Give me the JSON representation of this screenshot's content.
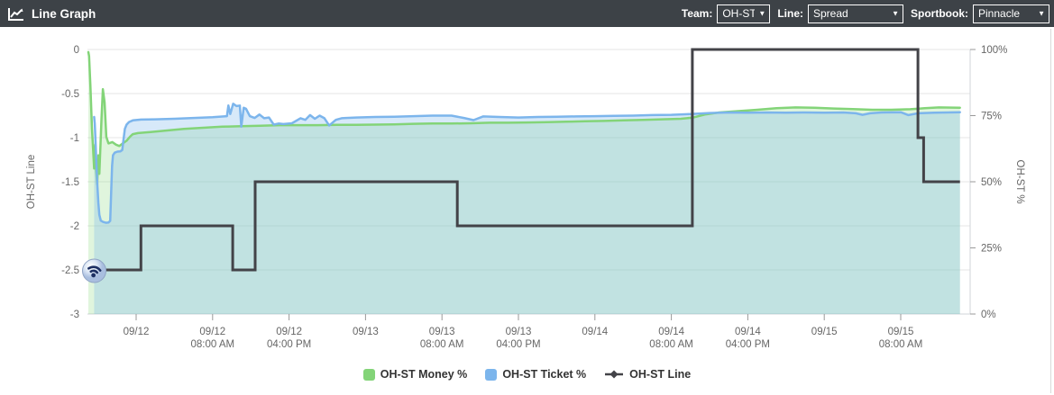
{
  "titlebar": {
    "title": "Line Graph",
    "controls": [
      {
        "label": "Team:",
        "value": "OH-ST"
      },
      {
        "label": "Line:",
        "value": "Spread"
      },
      {
        "label": "Sportbook:",
        "value": "Pinnacle"
      }
    ]
  },
  "colors": {
    "header_bg": "#3d4247",
    "money_green": "#83d478",
    "money_green_fill": "rgba(134,217,123,0.26)",
    "ticket_blue": "#7cb5ec",
    "ticket_blue_fill": "rgba(124,181,236,0.30)",
    "line_dark": "#434348",
    "grid": "#e6e6e6",
    "axis_line": "#d0d4d9",
    "tick": "#999999",
    "axis_text": "#666666",
    "legend_text": "#333333"
  },
  "watermark": {
    "icon": "rss-icon"
  },
  "chart_data": {
    "type": "line",
    "title": "",
    "x_unit": "hours from 09/12 12:00 AM",
    "x_tick_hours": [
      0,
      8,
      16,
      24,
      32,
      40,
      48,
      56,
      64,
      72,
      80
    ],
    "x_tick_labels": [
      [
        "09/12",
        ""
      ],
      [
        "09/12",
        "08:00 AM"
      ],
      [
        "09/12",
        "04:00 PM"
      ],
      [
        "09/13",
        ""
      ],
      [
        "09/13",
        "08:00 AM"
      ],
      [
        "09/13",
        "04:00 PM"
      ],
      [
        "09/14",
        ""
      ],
      [
        "09/14",
        "08:00 AM"
      ],
      [
        "09/14",
        "04:00 PM"
      ],
      [
        "09/15",
        ""
      ],
      [
        "09/15",
        "08:00 AM"
      ]
    ],
    "left_axis": {
      "title": "OH-ST Line",
      "min": -3,
      "max": 0,
      "tick_values": [
        0,
        -0.5,
        -1,
        -1.5,
        -2,
        -2.5,
        -3
      ],
      "tick_labels": [
        "0",
        "-0.5",
        "-1",
        "-1.5",
        "-2",
        "-2.5",
        "-3"
      ]
    },
    "right_axis": {
      "title": "OH-ST %",
      "min": 0,
      "max": 100,
      "tick_values": [
        100,
        75,
        50,
        25,
        0
      ],
      "tick_labels": [
        "100%",
        "75%",
        "50%",
        "25%",
        "0%"
      ]
    },
    "series": [
      {
        "name": "OH-ST Money %",
        "type": "area",
        "axis": "right",
        "points": [
          [
            -5.0,
            99
          ],
          [
            -4.92,
            97.5
          ],
          [
            -4.78,
            86
          ],
          [
            -4.62,
            70
          ],
          [
            -4.5,
            62
          ],
          [
            -4.4,
            55
          ],
          [
            -4.28,
            64
          ],
          [
            -4.18,
            54
          ],
          [
            -4.08,
            49
          ],
          [
            -3.95,
            60
          ],
          [
            -3.85,
            53
          ],
          [
            -3.62,
            74
          ],
          [
            -3.48,
            85
          ],
          [
            -3.3,
            80
          ],
          [
            -3.12,
            67
          ],
          [
            -2.9,
            64.5
          ],
          [
            -2.5,
            65
          ],
          [
            -2.1,
            64
          ],
          [
            -1.75,
            63.5
          ],
          [
            -1.4,
            64.5
          ],
          [
            -1.0,
            65.5
          ],
          [
            -0.65,
            67
          ],
          [
            -0.35,
            68
          ],
          [
            0.2,
            68.4
          ],
          [
            1.5,
            68.8
          ],
          [
            3,
            69.3
          ],
          [
            5,
            70
          ],
          [
            7,
            70.4
          ],
          [
            9,
            70.8
          ],
          [
            11,
            71
          ],
          [
            13,
            71.2
          ],
          [
            15,
            71.4
          ],
          [
            17,
            71.4
          ],
          [
            19,
            71.4
          ],
          [
            21,
            71.5
          ],
          [
            23,
            71.5
          ],
          [
            25,
            71.6
          ],
          [
            27,
            71.7
          ],
          [
            29,
            71.9
          ],
          [
            31,
            72
          ],
          [
            33,
            72
          ],
          [
            35,
            72.1
          ],
          [
            37,
            72.3
          ],
          [
            39,
            72.3
          ],
          [
            41,
            72.4
          ],
          [
            43,
            72.5
          ],
          [
            45,
            72.7
          ],
          [
            47,
            72.9
          ],
          [
            49,
            73
          ],
          [
            51,
            73.2
          ],
          [
            53,
            73.4
          ],
          [
            55,
            73.6
          ],
          [
            57,
            73.8
          ],
          [
            58.3,
            74.3
          ],
          [
            59.5,
            75.4
          ],
          [
            61,
            76.2
          ],
          [
            63,
            76.7
          ],
          [
            65,
            77.2
          ],
          [
            67,
            77.8
          ],
          [
            69,
            78.1
          ],
          [
            71,
            78
          ],
          [
            73,
            77.7
          ],
          [
            75,
            77.5
          ],
          [
            77,
            77.2
          ],
          [
            79,
            77.2
          ],
          [
            81,
            77.4
          ],
          [
            82.5,
            77.8
          ],
          [
            84,
            78.1
          ],
          [
            86.2,
            78
          ]
        ]
      },
      {
        "name": "OH-ST Ticket %",
        "type": "area",
        "axis": "right",
        "points": [
          [
            -4.4,
            74.5
          ],
          [
            -4.33,
            72
          ],
          [
            -4.25,
            65
          ],
          [
            -4.15,
            56
          ],
          [
            -4.05,
            48
          ],
          [
            -3.95,
            42
          ],
          [
            -3.85,
            37.5
          ],
          [
            -3.7,
            35.3
          ],
          [
            -3.45,
            34.8
          ],
          [
            -3.15,
            34.5
          ],
          [
            -2.9,
            34.6
          ],
          [
            -2.72,
            35.2
          ],
          [
            -2.62,
            45
          ],
          [
            -2.52,
            56
          ],
          [
            -2.42,
            60
          ],
          [
            -2.25,
            61
          ],
          [
            -1.95,
            61.4
          ],
          [
            -1.65,
            61.5
          ],
          [
            -1.45,
            62
          ],
          [
            -1.32,
            66
          ],
          [
            -1.18,
            70
          ],
          [
            -1.0,
            71.6
          ],
          [
            -0.75,
            72.6
          ],
          [
            -0.35,
            73.2
          ],
          [
            0.5,
            73.5
          ],
          [
            2,
            73.6
          ],
          [
            4,
            73.8
          ],
          [
            6,
            74.1
          ],
          [
            8,
            74.4
          ],
          [
            9.5,
            74.8
          ],
          [
            9.65,
            78.8
          ],
          [
            9.85,
            75.6
          ],
          [
            10.15,
            79.5
          ],
          [
            10.5,
            78.6
          ],
          [
            10.85,
            78.8
          ],
          [
            11.0,
            70.8
          ],
          [
            11.25,
            78
          ],
          [
            11.5,
            77.6
          ],
          [
            11.9,
            74.8
          ],
          [
            12.4,
            74.1
          ],
          [
            12.9,
            75.4
          ],
          [
            13.4,
            74
          ],
          [
            13.9,
            74.3
          ],
          [
            14.4,
            71.6
          ],
          [
            14.9,
            72
          ],
          [
            15.4,
            71.8
          ],
          [
            16.3,
            72.1
          ],
          [
            17.2,
            74
          ],
          [
            17.7,
            73.4
          ],
          [
            18.2,
            75.2
          ],
          [
            18.7,
            73.8
          ],
          [
            19.2,
            75
          ],
          [
            19.7,
            74
          ],
          [
            20.2,
            71.3
          ],
          [
            20.9,
            73.4
          ],
          [
            21.5,
            74
          ],
          [
            23,
            74.3
          ],
          [
            25,
            74.5
          ],
          [
            27,
            74.6
          ],
          [
            29,
            74.8
          ],
          [
            31,
            75
          ],
          [
            33,
            75
          ],
          [
            34.3,
            74.1
          ],
          [
            35.3,
            73.3
          ],
          [
            36.3,
            74.7
          ],
          [
            38,
            74.5
          ],
          [
            40,
            74.3
          ],
          [
            42,
            74.5
          ],
          [
            44,
            74.6
          ],
          [
            46,
            74.7
          ],
          [
            48,
            74.8
          ],
          [
            50,
            74.9
          ],
          [
            52,
            75
          ],
          [
            54,
            75.2
          ],
          [
            56,
            75.3
          ],
          [
            58,
            75.6
          ],
          [
            60,
            76
          ],
          [
            62,
            76.2
          ],
          [
            64,
            76.1
          ],
          [
            66,
            76.2
          ],
          [
            68,
            76.1
          ],
          [
            70,
            76.2
          ],
          [
            72,
            76.1
          ],
          [
            74,
            76.2
          ],
          [
            75.3,
            75.9
          ],
          [
            76,
            75.3
          ],
          [
            76.8,
            75.9
          ],
          [
            78,
            76.2
          ],
          [
            80,
            76.3
          ],
          [
            80.8,
            75.2
          ],
          [
            81.8,
            75.9
          ],
          [
            83.5,
            76.1
          ],
          [
            86.2,
            76.3
          ]
        ]
      },
      {
        "name": "OH-ST Line",
        "type": "step",
        "axis": "left",
        "points": [
          [
            -5.0,
            -2.5
          ],
          [
            0.5,
            -2.5
          ],
          [
            0.5,
            -2
          ],
          [
            10.1,
            -2
          ],
          [
            10.1,
            -2.5
          ],
          [
            12.45,
            -2.5
          ],
          [
            12.45,
            -1.5
          ],
          [
            33.6,
            -1.5
          ],
          [
            33.6,
            -2
          ],
          [
            58.2,
            -2
          ],
          [
            58.2,
            0
          ],
          [
            81.8,
            0
          ],
          [
            81.8,
            -1
          ],
          [
            82.4,
            -1
          ],
          [
            82.4,
            -1.5
          ],
          [
            86.2,
            -1.5
          ]
        ]
      }
    ],
    "legend_position": "bottom"
  }
}
